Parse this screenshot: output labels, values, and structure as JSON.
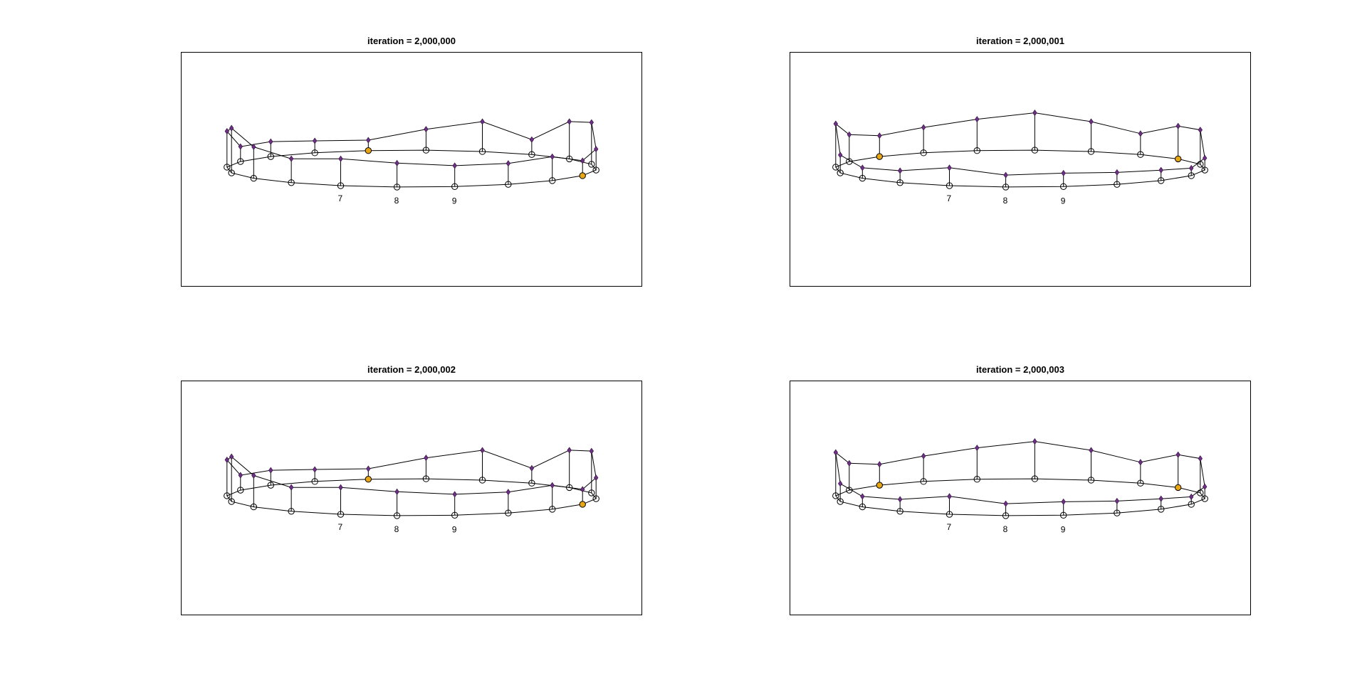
{
  "colors": {
    "node": "#6e2f86",
    "active": "#e8a614",
    "line": "#000000"
  },
  "node_labels": [
    "7",
    "8",
    "9"
  ],
  "panels": [
    {
      "title": "iteration = 2,000,000",
      "active_indices": [
        9,
        16
      ],
      "inner_top": [
        3.5,
        14.5,
        10,
        5.5,
        8.5,
        12,
        5,
        5,
        4,
        3.5,
        7,
        10,
        5,
        12.5,
        14,
        3,
        3.5,
        8,
        7,
        5
      ],
      "outer_top": [
        8,
        9,
        8,
        10.5,
        15,
        12,
        7,
        9,
        11.5,
        9.5,
        9.5,
        11.5,
        8,
        7.5,
        8,
        7,
        5,
        8,
        7,
        7
      ]
    },
    {
      "title": "iteration = 2,000,001",
      "active_indices": [
        7,
        13
      ],
      "inner_top": [
        4.5,
        12,
        11,
        7.5,
        12.5,
        14.5,
        9,
        7,
        8.5,
        10.5,
        12.5,
        10,
        7,
        11,
        11.5,
        9,
        9,
        9,
        10,
        8
      ],
      "outer_top": [
        4,
        6,
        4,
        3.5,
        6,
        7.5,
        7,
        7.5,
        5.5,
        5,
        3,
        3,
        5,
        4,
        4,
        4,
        2.5,
        3.5,
        4,
        4.5
      ]
    },
    {
      "title": "iteration = 2,000,002",
      "active_indices": [
        9,
        16
      ],
      "inner_top": [
        3.5,
        14.5,
        10,
        5.5,
        8.5,
        12,
        5,
        5,
        4,
        3.5,
        7,
        10,
        5,
        12.5,
        14,
        3,
        3.5,
        8,
        7,
        5
      ],
      "outer_top": [
        8,
        9,
        8,
        10.5,
        15,
        12,
        7,
        9,
        11.5,
        9.5,
        9.5,
        11.5,
        8,
        7.5,
        8,
        7,
        5,
        8,
        7,
        7
      ]
    },
    {
      "title": "iteration = 2,000,003",
      "active_indices": [
        7,
        13
      ],
      "inner_top": [
        4.5,
        12,
        11,
        7.5,
        12.5,
        14.5,
        9,
        7,
        8.5,
        10.5,
        12.5,
        10,
        7,
        11,
        11.5,
        9,
        9,
        9,
        10,
        8
      ],
      "outer_top": [
        4,
        6,
        4,
        3.5,
        6,
        7.5,
        7,
        7.5,
        5.5,
        5,
        3,
        3,
        5,
        4,
        4,
        4,
        2.5,
        3.5,
        4,
        4.5
      ]
    }
  ]
}
